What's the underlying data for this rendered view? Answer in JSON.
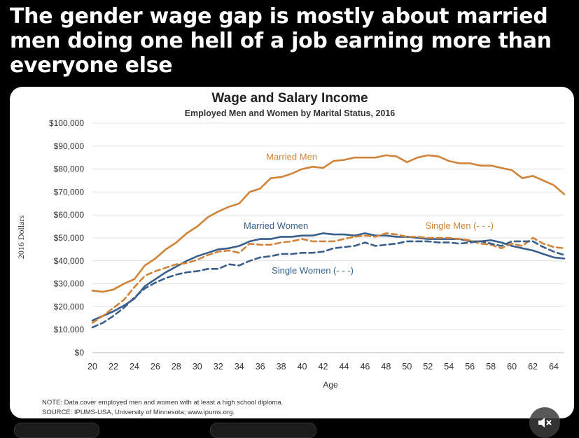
{
  "headline": "The gender wage gap is mostly about married men doing one hell of a job earning more than everyone else",
  "chart_data": {
    "type": "line",
    "title": "Wage and Salary Income",
    "subtitle": "Employed Men and Women by Marital Status, 2016",
    "xlabel": "Age",
    "ylabel": "2016 Dollars",
    "x": [
      20,
      21,
      22,
      23,
      24,
      25,
      26,
      27,
      28,
      29,
      30,
      31,
      32,
      33,
      34,
      35,
      36,
      37,
      38,
      39,
      40,
      41,
      42,
      43,
      44,
      45,
      46,
      47,
      48,
      49,
      50,
      51,
      52,
      53,
      54,
      55,
      56,
      57,
      58,
      59,
      60,
      61,
      62,
      63,
      64,
      65
    ],
    "xticks": [
      20,
      22,
      24,
      26,
      28,
      30,
      32,
      34,
      36,
      38,
      40,
      42,
      44,
      46,
      48,
      50,
      52,
      54,
      56,
      58,
      60,
      62,
      64
    ],
    "yticks": [
      0,
      10000,
      20000,
      30000,
      40000,
      50000,
      60000,
      70000,
      80000,
      90000,
      100000
    ],
    "ytick_labels": [
      "$0",
      "$10,000",
      "$20,000",
      "$30,000",
      "$40,000",
      "$50,000",
      "$60,000",
      "$70,000",
      "$80,000",
      "$90,000",
      "$100,000"
    ],
    "ylim": [
      0,
      100000
    ],
    "xlim": [
      20,
      65
    ],
    "grid": true,
    "series": [
      {
        "name": "Married Men",
        "color": "#d0843a",
        "dash": false,
        "values": [
          27000,
          26500,
          27500,
          30000,
          32000,
          38000,
          41000,
          45000,
          48000,
          52000,
          55000,
          59000,
          61500,
          63500,
          65000,
          70000,
          71500,
          76000,
          76500,
          78000,
          80000,
          81000,
          80500,
          83500,
          84000,
          85000,
          85000,
          85000,
          86000,
          85500,
          83000,
          85000,
          86000,
          85500,
          83500,
          82500,
          82500,
          81500,
          81500,
          80500,
          79500,
          76000,
          77000,
          75000,
          73000,
          69000
        ]
      },
      {
        "name": "Married Women",
        "color": "#3a5f8c",
        "dash": false,
        "values": [
          14000,
          16000,
          18000,
          20500,
          23500,
          29000,
          32000,
          35000,
          37500,
          40000,
          42000,
          43500,
          45000,
          45500,
          46500,
          48500,
          49500,
          49500,
          50500,
          50500,
          51000,
          51000,
          52000,
          51500,
          51500,
          51000,
          52000,
          51000,
          51000,
          50500,
          50500,
          50000,
          49500,
          49500,
          49500,
          49500,
          48500,
          48500,
          49000,
          48000,
          46500,
          45500,
          44500,
          43000,
          41500,
          41000
        ]
      },
      {
        "name": "Single Men (- - -)",
        "color": "#d0843a",
        "dash": true,
        "values": [
          13000,
          16000,
          19500,
          23000,
          28500,
          33500,
          35500,
          37000,
          38500,
          39000,
          40500,
          42500,
          44000,
          44500,
          43500,
          47500,
          47000,
          47000,
          48000,
          48500,
          49500,
          48500,
          48500,
          48500,
          49500,
          50500,
          51000,
          50500,
          52000,
          51500,
          50500,
          50500,
          50000,
          50000,
          50000,
          49500,
          49000,
          47500,
          47000,
          45500,
          47500,
          46500,
          50000,
          47500,
          46000,
          45500
        ]
      },
      {
        "name": "Single Women (- - -)",
        "color": "#3a5f8c",
        "dash": true,
        "values": [
          11000,
          13000,
          16000,
          19500,
          24000,
          28000,
          30500,
          32500,
          34000,
          35000,
          35500,
          36500,
          36500,
          38500,
          38000,
          40000,
          41500,
          42000,
          43000,
          43000,
          43500,
          43500,
          44000,
          45500,
          46000,
          46500,
          48000,
          46500,
          47000,
          47500,
          48500,
          48500,
          48500,
          48000,
          48000,
          47500,
          48000,
          48500,
          47500,
          46500,
          48500,
          48500,
          48500,
          46000,
          44000,
          42500
        ]
      }
    ],
    "labels": [
      {
        "text": "Married Men",
        "series": 0,
        "at_x": 39,
        "at_y": 84000
      },
      {
        "text": "Married Women",
        "series": 1,
        "at_x": 37.5,
        "at_y": 54000
      },
      {
        "text": "Single Men (- - -)",
        "series": 2,
        "at_x": 55,
        "at_y": 54000
      },
      {
        "text": "Single Women (- - -)",
        "series": 3,
        "at_x": 41,
        "at_y": 34500
      }
    ],
    "note": "NOTE: Data cover employed men and women with at least a high school diploma.",
    "source": "SOURCE: IPUMS-USA, University of Minnesota; www.ipums.org."
  },
  "controls": {
    "mute_icon": "speaker-muted-icon"
  }
}
